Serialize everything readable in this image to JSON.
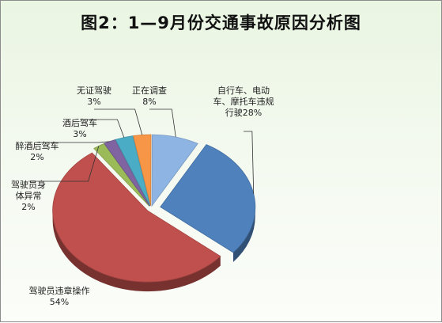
{
  "title": "图2：1—9月份交通事故原因分析图",
  "chart_data": {
    "type": "pie",
    "title": "图2：1—9月份交通事故原因分析图",
    "slices": [
      {
        "label": "自行车、电动车、摩托车违规行驶",
        "value": 28,
        "pct_label": "28%",
        "color": "#4f81bd"
      },
      {
        "label": "驾驶员违章操作",
        "value": 54,
        "pct_label": "54%",
        "color": "#c0504d"
      },
      {
        "label": "驾驶员身体异常",
        "value": 2,
        "pct_label": "2%",
        "color": "#9bbb59"
      },
      {
        "label": "醉酒后驾车",
        "value": 2,
        "pct_label": "2%",
        "color": "#8064a2"
      },
      {
        "label": "酒后驾车",
        "value": 3,
        "pct_label": "3%",
        "color": "#4bacc6"
      },
      {
        "label": "无证驾驶",
        "value": 3,
        "pct_label": "3%",
        "color": "#f79646"
      },
      {
        "label": "正在调查",
        "value": 8,
        "pct_label": "8%",
        "color": "#8eb4e3"
      }
    ],
    "exploded": true,
    "style": "3d-pie"
  }
}
